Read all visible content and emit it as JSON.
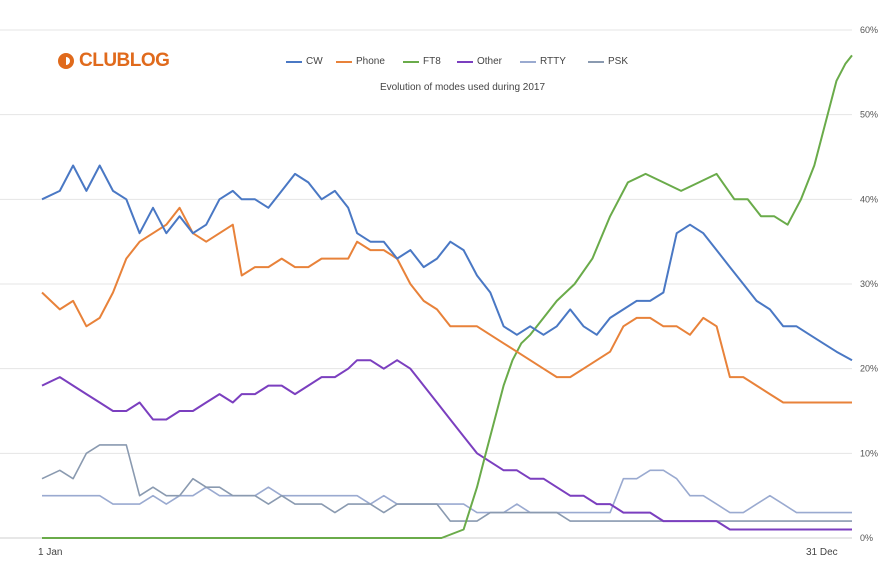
{
  "brand": {
    "logo_text": "CLUBLOG",
    "logo_icon": "clublog-logo-icon",
    "color": "#e06a1c"
  },
  "chart_data": {
    "type": "line",
    "title": "",
    "subtitle": "Evolution of modes used during 2017",
    "x_labels": {
      "start": "1 Jan",
      "end": "31 Dec"
    },
    "x_range": [
      0,
      365
    ],
    "ylim": [
      0,
      60
    ],
    "y_ticks": [
      0,
      10,
      20,
      30,
      40,
      50,
      60
    ],
    "y_tick_labels": [
      "0%",
      "10%",
      "20%",
      "30%",
      "40%",
      "50%",
      "60%"
    ],
    "grid": true,
    "legend_position": "top",
    "series": [
      {
        "name": "CW",
        "color": "#4a78c4",
        "x": [
          0,
          8,
          14,
          20,
          26,
          32,
          38,
          44,
          50,
          56,
          62,
          68,
          74,
          80,
          86,
          90,
          96,
          102,
          108,
          114,
          120,
          126,
          132,
          138,
          142,
          148,
          154,
          160,
          166,
          172,
          178,
          184,
          190,
          196,
          202,
          208,
          214,
          220,
          226,
          232,
          238,
          244,
          250,
          256,
          262,
          268,
          274,
          280,
          286,
          292,
          298,
          304,
          310,
          316,
          322,
          328,
          334,
          340,
          346,
          352,
          358,
          365
        ],
        "values": [
          40,
          41,
          44,
          41,
          44,
          41,
          40,
          36,
          39,
          36,
          38,
          36,
          37,
          40,
          41,
          40,
          40,
          39,
          41,
          43,
          42,
          40,
          41,
          39,
          36,
          35,
          35,
          33,
          34,
          32,
          33,
          35,
          34,
          31,
          29,
          25,
          24,
          25,
          24,
          25,
          27,
          25,
          24,
          26,
          27,
          28,
          28,
          29,
          36,
          37,
          36,
          34,
          32,
          30,
          28,
          27,
          25,
          25,
          24,
          23,
          22,
          21
        ]
      },
      {
        "name": "Phone",
        "color": "#e8823a",
        "x": [
          0,
          8,
          14,
          20,
          26,
          32,
          38,
          44,
          50,
          56,
          62,
          68,
          74,
          80,
          86,
          90,
          96,
          102,
          108,
          114,
          120,
          126,
          132,
          138,
          142,
          148,
          154,
          160,
          166,
          172,
          178,
          184,
          190,
          196,
          202,
          208,
          214,
          220,
          226,
          232,
          238,
          244,
          250,
          256,
          262,
          268,
          274,
          280,
          286,
          292,
          298,
          304,
          310,
          316,
          322,
          328,
          334,
          340,
          346,
          352,
          358,
          365
        ],
        "values": [
          29,
          27,
          28,
          25,
          26,
          29,
          33,
          35,
          36,
          37,
          39,
          36,
          35,
          36,
          37,
          31,
          32,
          32,
          33,
          32,
          32,
          33,
          33,
          33,
          35,
          34,
          34,
          33,
          30,
          28,
          27,
          25,
          25,
          25,
          24,
          23,
          22,
          21,
          20,
          19,
          19,
          20,
          21,
          22,
          25,
          26,
          26,
          25,
          25,
          24,
          26,
          25,
          19,
          19,
          18,
          17,
          16,
          16,
          16,
          16,
          16,
          16
        ]
      },
      {
        "name": "FT8",
        "color": "#6aab4a",
        "x": [
          0,
          60,
          120,
          170,
          180,
          190,
          196,
          200,
          204,
          208,
          212,
          216,
          220,
          226,
          232,
          240,
          248,
          256,
          264,
          272,
          280,
          288,
          296,
          304,
          312,
          318,
          324,
          330,
          336,
          342,
          348,
          354,
          358,
          362,
          365
        ],
        "values": [
          0,
          0,
          0,
          0,
          0,
          1,
          6,
          10,
          14,
          18,
          21,
          23,
          24,
          26,
          28,
          30,
          33,
          38,
          42,
          43,
          42,
          41,
          42,
          43,
          40,
          40,
          38,
          38,
          37,
          40,
          44,
          50,
          54,
          56,
          57
        ]
      },
      {
        "name": "Other",
        "color": "#7b3fbf",
        "x": [
          0,
          8,
          14,
          20,
          26,
          32,
          38,
          44,
          50,
          56,
          62,
          68,
          74,
          80,
          86,
          90,
          96,
          102,
          108,
          114,
          120,
          126,
          132,
          138,
          142,
          148,
          154,
          160,
          166,
          172,
          178,
          184,
          190,
          196,
          202,
          208,
          214,
          220,
          226,
          232,
          238,
          244,
          250,
          256,
          262,
          268,
          274,
          280,
          286,
          292,
          298,
          304,
          310,
          316,
          322,
          328,
          334,
          340,
          346,
          352,
          358,
          365
        ],
        "values": [
          18,
          19,
          18,
          17,
          16,
          15,
          15,
          16,
          14,
          14,
          15,
          15,
          16,
          17,
          16,
          17,
          17,
          18,
          18,
          17,
          18,
          19,
          19,
          20,
          21,
          21,
          20,
          21,
          20,
          18,
          16,
          14,
          12,
          10,
          9,
          8,
          8,
          7,
          7,
          6,
          5,
          5,
          4,
          4,
          3,
          3,
          3,
          2,
          2,
          2,
          2,
          2,
          1,
          1,
          1,
          1,
          1,
          1,
          1,
          1,
          1,
          1
        ]
      },
      {
        "name": "RTTY",
        "color": "#9aaad0",
        "x": [
          0,
          8,
          14,
          20,
          26,
          32,
          38,
          44,
          50,
          56,
          62,
          68,
          74,
          80,
          86,
          90,
          96,
          102,
          108,
          114,
          120,
          126,
          132,
          138,
          142,
          148,
          154,
          160,
          166,
          172,
          178,
          184,
          190,
          196,
          202,
          208,
          214,
          220,
          226,
          232,
          238,
          244,
          250,
          256,
          262,
          268,
          274,
          280,
          286,
          292,
          298,
          304,
          310,
          316,
          322,
          328,
          334,
          340,
          346,
          352,
          358,
          365
        ],
        "values": [
          5,
          5,
          5,
          5,
          5,
          4,
          4,
          4,
          5,
          4,
          5,
          5,
          6,
          5,
          5,
          5,
          5,
          6,
          5,
          5,
          5,
          5,
          5,
          5,
          5,
          4,
          5,
          4,
          4,
          4,
          4,
          4,
          4,
          3,
          3,
          3,
          4,
          3,
          3,
          3,
          3,
          3,
          3,
          3,
          7,
          7,
          8,
          8,
          7,
          5,
          5,
          4,
          3,
          3,
          4,
          5,
          4,
          3,
          3,
          3,
          3,
          3
        ]
      },
      {
        "name": "PSK",
        "color": "#8a9ab0",
        "x": [
          0,
          8,
          14,
          20,
          26,
          32,
          38,
          44,
          50,
          56,
          62,
          68,
          74,
          80,
          86,
          90,
          96,
          102,
          108,
          114,
          120,
          126,
          132,
          138,
          142,
          148,
          154,
          160,
          166,
          172,
          178,
          184,
          190,
          196,
          202,
          208,
          214,
          220,
          226,
          232,
          238,
          244,
          250,
          256,
          262,
          268,
          274,
          280,
          286,
          292,
          298,
          304,
          310,
          316,
          322,
          328,
          334,
          340,
          346,
          352,
          358,
          365
        ],
        "values": [
          7,
          8,
          7,
          10,
          11,
          11,
          11,
          5,
          6,
          5,
          5,
          7,
          6,
          6,
          5,
          5,
          5,
          4,
          5,
          4,
          4,
          4,
          3,
          4,
          4,
          4,
          3,
          4,
          4,
          4,
          4,
          2,
          2,
          2,
          3,
          3,
          3,
          3,
          3,
          3,
          2,
          2,
          2,
          2,
          2,
          2,
          2,
          2,
          2,
          2,
          2,
          2,
          2,
          2,
          2,
          2,
          2,
          2,
          2,
          2,
          2,
          2
        ]
      }
    ]
  }
}
